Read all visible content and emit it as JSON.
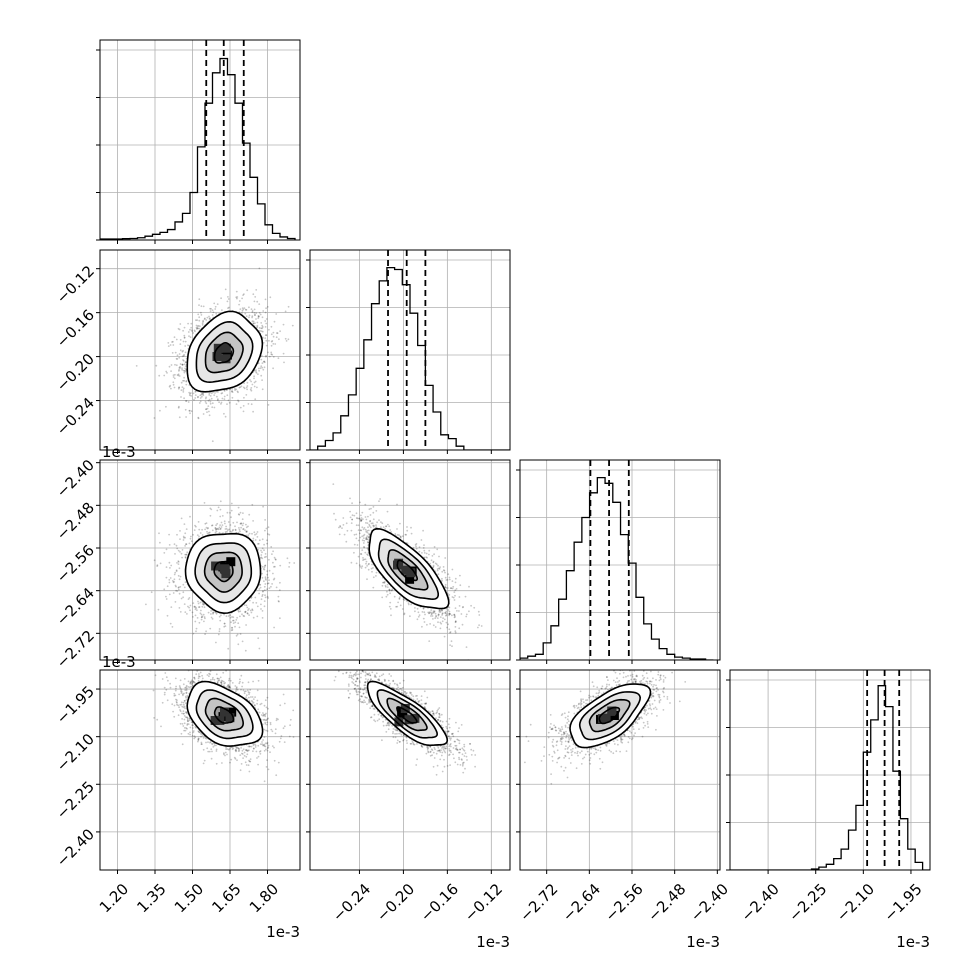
{
  "chart_data": {
    "type": "corner",
    "n_params": 4,
    "titles": [],
    "axis_labels": [
      "",
      "",
      "",
      ""
    ],
    "offset_labels": [
      "1e-3",
      "1e-3",
      "1e-3",
      "1e-3"
    ],
    "grid": true,
    "params": [
      {
        "range": [
          1.13,
          1.93
        ],
        "ticks": [
          1.2,
          1.35,
          1.5,
          1.65,
          1.8
        ],
        "tick_labels": [
          "1.20",
          "1.35",
          "1.50",
          "1.65",
          "1.80"
        ],
        "quantiles": [
          1.555,
          1.625,
          1.705
        ],
        "median": 1.625,
        "sigma": 0.075,
        "hist_bins": [
          1.13,
          1.16,
          1.19,
          1.22,
          1.25,
          1.28,
          1.31,
          1.34,
          1.37,
          1.4,
          1.43,
          1.46,
          1.49,
          1.52,
          1.55,
          1.58,
          1.61,
          1.64,
          1.67,
          1.7,
          1.73,
          1.76,
          1.79,
          1.82,
          1.85,
          1.88,
          1.91
        ],
        "hist_counts": [
          0.005,
          0.005,
          0.005,
          0.007,
          0.008,
          0.012,
          0.02,
          0.03,
          0.04,
          0.055,
          0.095,
          0.14,
          0.25,
          0.49,
          0.72,
          0.88,
          0.955,
          0.87,
          0.72,
          0.51,
          0.33,
          0.19,
          0.08,
          0.035,
          0.016,
          0.008
        ]
      },
      {
        "range": [
          -0.285,
          -0.103
        ],
        "ticks": [
          -0.24,
          -0.2,
          -0.16,
          -0.12
        ],
        "tick_labels": [
          "−0.24",
          "−0.20",
          "−0.16",
          "−0.12"
        ],
        "quantiles": [
          -0.214,
          -0.197,
          -0.18
        ],
        "median": -0.197,
        "sigma": 0.018,
        "hist_bins": [
          -0.285,
          -0.278,
          -0.271,
          -0.264,
          -0.257,
          -0.25,
          -0.243,
          -0.236,
          -0.229,
          -0.222,
          -0.215,
          -0.208,
          -0.201,
          -0.194,
          -0.187,
          -0.18,
          -0.173,
          -0.166,
          -0.159,
          -0.152,
          -0.145,
          -0.138,
          -0.131,
          -0.124,
          -0.117,
          -0.11,
          -0.103
        ],
        "hist_counts": [
          0.0,
          0.02,
          0.05,
          0.09,
          0.18,
          0.29,
          0.43,
          0.58,
          0.77,
          0.89,
          0.96,
          0.95,
          0.87,
          0.72,
          0.55,
          0.34,
          0.2,
          0.08,
          0.06,
          0.02,
          0.0,
          0.0,
          0.0,
          0.0,
          0.0,
          0.0
        ]
      },
      {
        "range": [
          -2.77,
          -2.395
        ],
        "ticks": [
          -2.72,
          -2.64,
          -2.56,
          -2.48,
          -2.4
        ],
        "tick_labels": [
          "−2.72",
          "−2.64",
          "−2.56",
          "−2.48",
          "−2.40"
        ],
        "quantiles": [
          -2.638,
          -2.603,
          -2.566
        ],
        "median": -2.603,
        "sigma": 0.037,
        "hist_bins": [
          -2.77,
          -2.7555,
          -2.741,
          -2.7265,
          -2.712,
          -2.6975,
          -2.683,
          -2.6685,
          -2.654,
          -2.6395,
          -2.625,
          -2.6105,
          -2.596,
          -2.5815,
          -2.567,
          -2.5525,
          -2.538,
          -2.5235,
          -2.509,
          -2.4945,
          -2.48,
          -2.4655,
          -2.451,
          -2.4365,
          -2.422,
          -2.4075
        ],
        "hist_counts": [
          0.01,
          0.02,
          0.03,
          0.09,
          0.18,
          0.32,
          0.47,
          0.62,
          0.75,
          0.88,
          0.96,
          0.93,
          0.83,
          0.66,
          0.51,
          0.33,
          0.19,
          0.11,
          0.06,
          0.03,
          0.015,
          0.01,
          0.005,
          0.005,
          0.0
        ]
      },
      {
        "range": [
          -2.52,
          -1.89
        ],
        "ticks": [
          -2.4,
          -2.25,
          -2.1,
          -1.95
        ],
        "tick_labels": [
          "−2.40",
          "−2.25",
          "−2.10",
          "−1.95"
        ],
        "quantiles": [
          -2.088,
          -2.033,
          -1.987
        ],
        "median": -2.033,
        "sigma": 0.05,
        "hist_bins": [
          -2.52,
          -2.4967,
          -2.4733,
          -2.45,
          -2.4267,
          -2.4033,
          -2.38,
          -2.3567,
          -2.3333,
          -2.31,
          -2.2867,
          -2.2633,
          -2.24,
          -2.2167,
          -2.1933,
          -2.17,
          -2.1467,
          -2.1233,
          -2.1,
          -2.0767,
          -2.0533,
          -2.03,
          -2.0067,
          -1.9833,
          -1.96,
          -1.9367,
          -1.9133,
          -1.89
        ],
        "hist_counts": [
          0.0,
          0.0,
          0.0,
          0.0,
          0.0,
          0.0,
          0.0,
          0.0,
          0.0,
          0.0,
          0.0,
          0.005,
          0.015,
          0.03,
          0.06,
          0.11,
          0.21,
          0.34,
          0.62,
          0.79,
          0.97,
          0.86,
          0.52,
          0.27,
          0.11,
          0.04,
          0.0
        ]
      }
    ],
    "correlations": [
      {
        "pair": [
          1,
          0
        ],
        "rho": 0.25
      },
      {
        "pair": [
          2,
          0
        ],
        "rho": 0.0
      },
      {
        "pair": [
          2,
          1
        ],
        "rho": -0.72
      },
      {
        "pair": [
          3,
          0
        ],
        "rho": -0.4
      },
      {
        "pair": [
          3,
          1
        ],
        "rho": -0.8
      },
      {
        "pair": [
          3,
          2
        ],
        "rho": 0.62
      }
    ],
    "contour_levels_sigma": [
      0.5,
      1.0,
      1.5,
      2.0
    ]
  }
}
